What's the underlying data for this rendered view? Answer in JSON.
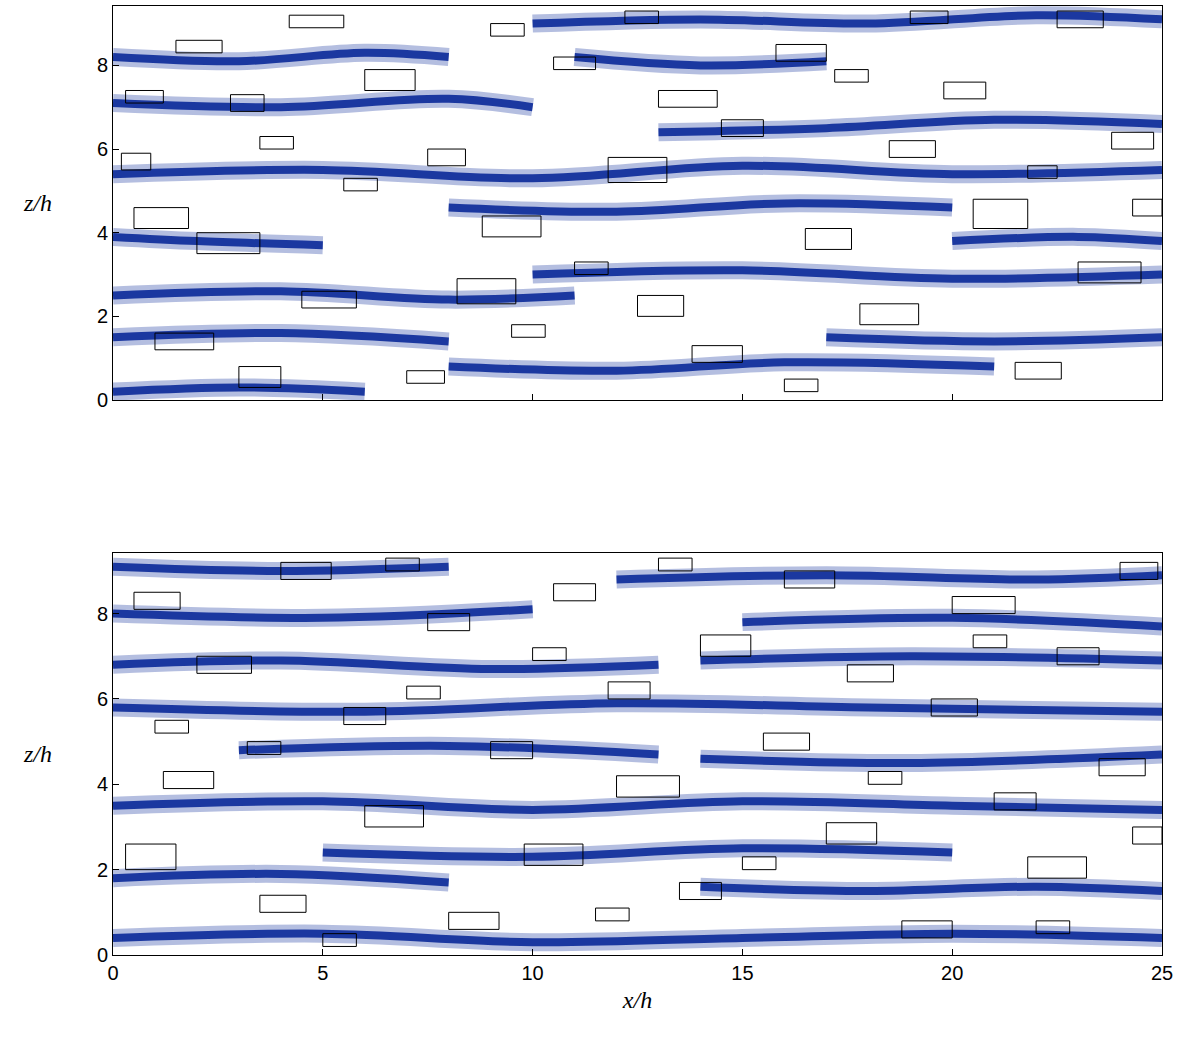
{
  "chart_data": [
    {
      "type": "scatter",
      "xlim": [
        0,
        25
      ],
      "ylim": [
        0,
        9.42
      ],
      "xticks": [
        0,
        5,
        10,
        15,
        20,
        25
      ],
      "yticks": [
        0,
        2,
        4,
        6,
        8
      ],
      "tick_labels": "y",
      "ylabel": "z/h",
      "streaks": {
        "color": "#0b2a9a",
        "lines": [
          {
            "x": [
              0,
              3,
              6,
              8
            ],
            "z": [
              8.2,
              8.1,
              8.3,
              8.2
            ]
          },
          {
            "x": [
              10,
              14,
              18,
              22,
              25
            ],
            "z": [
              9.0,
              9.1,
              9.0,
              9.2,
              9.1
            ]
          },
          {
            "x": [
              0,
              4,
              8,
              10
            ],
            "z": [
              7.1,
              7.0,
              7.2,
              7.0
            ]
          },
          {
            "x": [
              13,
              17,
              21,
              25
            ],
            "z": [
              6.4,
              6.5,
              6.7,
              6.6
            ]
          },
          {
            "x": [
              0,
              5,
              10,
              15,
              20,
              25
            ],
            "z": [
              5.4,
              5.5,
              5.3,
              5.6,
              5.4,
              5.5
            ]
          },
          {
            "x": [
              8,
              12,
              16,
              20
            ],
            "z": [
              4.6,
              4.5,
              4.7,
              4.6
            ]
          },
          {
            "x": [
              0,
              2,
              5
            ],
            "z": [
              3.9,
              3.8,
              3.7
            ]
          },
          {
            "x": [
              20,
              23,
              25
            ],
            "z": [
              3.8,
              3.9,
              3.8
            ]
          },
          {
            "x": [
              10,
              15,
              20,
              25
            ],
            "z": [
              3.0,
              3.1,
              2.9,
              3.0
            ]
          },
          {
            "x": [
              0,
              4,
              8,
              11
            ],
            "z": [
              2.5,
              2.6,
              2.4,
              2.5
            ]
          },
          {
            "x": [
              0,
              4,
              8
            ],
            "z": [
              1.5,
              1.6,
              1.4
            ]
          },
          {
            "x": [
              17,
              21,
              25
            ],
            "z": [
              1.5,
              1.4,
              1.5
            ]
          },
          {
            "x": [
              8,
              12,
              16,
              21
            ],
            "z": [
              0.8,
              0.7,
              0.9,
              0.8
            ]
          },
          {
            "x": [
              0,
              3,
              6
            ],
            "z": [
              0.2,
              0.3,
              0.2
            ]
          },
          {
            "x": [
              11,
              14,
              17
            ],
            "z": [
              8.2,
              8.0,
              8.1
            ]
          }
        ]
      },
      "boxes": {
        "color": "#000000",
        "rects": [
          [
            0.3,
            1.2,
            7.1,
            7.4
          ],
          [
            1.5,
            2.6,
            8.3,
            8.6
          ],
          [
            2.8,
            3.6,
            6.9,
            7.3
          ],
          [
            4.2,
            5.5,
            8.9,
            9.2
          ],
          [
            6.0,
            7.2,
            7.4,
            7.9
          ],
          [
            0.5,
            1.8,
            4.1,
            4.6
          ],
          [
            2.0,
            3.5,
            3.5,
            4.0
          ],
          [
            4.5,
            5.8,
            2.2,
            2.6
          ],
          [
            1.0,
            2.4,
            1.2,
            1.6
          ],
          [
            3.0,
            4.0,
            0.3,
            0.8
          ],
          [
            7.5,
            8.4,
            5.6,
            6.0
          ],
          [
            8.8,
            10.2,
            3.9,
            4.4
          ],
          [
            10.5,
            11.5,
            7.9,
            8.2
          ],
          [
            11.8,
            13.2,
            5.2,
            5.8
          ],
          [
            12.5,
            13.6,
            2.0,
            2.5
          ],
          [
            13.8,
            15.0,
            0.9,
            1.3
          ],
          [
            14.5,
            15.5,
            6.3,
            6.7
          ],
          [
            15.8,
            17.0,
            8.1,
            8.5
          ],
          [
            16.5,
            17.6,
            3.6,
            4.1
          ],
          [
            17.8,
            19.2,
            1.8,
            2.3
          ],
          [
            18.5,
            19.6,
            5.8,
            6.2
          ],
          [
            19.8,
            20.8,
            7.2,
            7.6
          ],
          [
            20.5,
            21.8,
            4.1,
            4.8
          ],
          [
            21.5,
            22.6,
            0.5,
            0.9
          ],
          [
            22.5,
            23.6,
            8.9,
            9.3
          ],
          [
            23.0,
            24.5,
            2.8,
            3.3
          ],
          [
            23.8,
            24.8,
            6.0,
            6.4
          ],
          [
            5.5,
            6.3,
            5.0,
            5.3
          ],
          [
            9.0,
            9.8,
            8.7,
            9.0
          ],
          [
            9.5,
            10.3,
            1.5,
            1.8
          ],
          [
            11.0,
            11.8,
            3.0,
            3.3
          ],
          [
            7.0,
            7.9,
            0.4,
            0.7
          ],
          [
            16.0,
            16.8,
            0.2,
            0.5
          ],
          [
            19.0,
            19.9,
            9.0,
            9.3
          ],
          [
            13.0,
            14.4,
            7.0,
            7.4
          ],
          [
            3.5,
            4.3,
            6.0,
            6.3
          ],
          [
            0.2,
            0.9,
            5.5,
            5.9
          ],
          [
            24.3,
            25.0,
            4.4,
            4.8
          ],
          [
            17.2,
            18.0,
            7.6,
            7.9
          ],
          [
            21.8,
            22.5,
            5.3,
            5.6
          ],
          [
            8.2,
            9.6,
            2.3,
            2.9
          ],
          [
            12.2,
            13.0,
            9.0,
            9.3
          ]
        ]
      }
    },
    {
      "type": "scatter",
      "xlim": [
        0,
        25
      ],
      "ylim": [
        0,
        9.42
      ],
      "xticks": [
        0,
        5,
        10,
        15,
        20,
        25
      ],
      "yticks": [
        0,
        2,
        4,
        6,
        8
      ],
      "xlabel": "x/h",
      "ylabel": "z/h",
      "streaks": {
        "color": "#0b2a9a",
        "lines": [
          {
            "x": [
              0,
              4,
              8
            ],
            "z": [
              9.1,
              9.0,
              9.1
            ]
          },
          {
            "x": [
              12,
              17,
              22,
              25
            ],
            "z": [
              8.8,
              8.9,
              8.8,
              8.9
            ]
          },
          {
            "x": [
              0,
              5,
              10
            ],
            "z": [
              8.0,
              7.9,
              8.1
            ]
          },
          {
            "x": [
              15,
              20,
              25
            ],
            "z": [
              7.8,
              7.9,
              7.7
            ]
          },
          {
            "x": [
              0,
              4,
              9,
              13
            ],
            "z": [
              6.8,
              6.9,
              6.7,
              6.8
            ]
          },
          {
            "x": [
              14,
              19,
              25
            ],
            "z": [
              6.9,
              7.0,
              6.9
            ]
          },
          {
            "x": [
              0,
              6,
              12,
              18,
              25
            ],
            "z": [
              5.8,
              5.7,
              5.9,
              5.8,
              5.7
            ]
          },
          {
            "x": [
              3,
              8,
              13
            ],
            "z": [
              4.8,
              4.9,
              4.7
            ]
          },
          {
            "x": [
              14,
              19,
              25
            ],
            "z": [
              4.6,
              4.5,
              4.7
            ]
          },
          {
            "x": [
              0,
              5,
              10,
              15,
              20,
              25
            ],
            "z": [
              3.5,
              3.6,
              3.4,
              3.6,
              3.5,
              3.4
            ]
          },
          {
            "x": [
              5,
              10,
              15,
              20
            ],
            "z": [
              2.4,
              2.3,
              2.5,
              2.4
            ]
          },
          {
            "x": [
              0,
              4,
              8
            ],
            "z": [
              1.8,
              1.9,
              1.7
            ]
          },
          {
            "x": [
              14,
              18,
              22,
              25
            ],
            "z": [
              1.6,
              1.5,
              1.6,
              1.5
            ]
          },
          {
            "x": [
              0,
              5,
              10,
              15,
              20,
              25
            ],
            "z": [
              0.4,
              0.5,
              0.3,
              0.4,
              0.5,
              0.4
            ]
          }
        ]
      },
      "boxes": {
        "color": "#000000",
        "rects": [
          [
            0.5,
            1.6,
            8.1,
            8.5
          ],
          [
            2.0,
            3.3,
            6.6,
            7.0
          ],
          [
            1.2,
            2.4,
            3.9,
            4.3
          ],
          [
            0.3,
            1.5,
            2.0,
            2.6
          ],
          [
            3.5,
            4.6,
            1.0,
            1.4
          ],
          [
            4.0,
            5.2,
            8.8,
            9.2
          ],
          [
            5.5,
            6.5,
            5.4,
            5.8
          ],
          [
            6.0,
            7.4,
            3.0,
            3.5
          ],
          [
            7.5,
            8.5,
            7.6,
            8.0
          ],
          [
            8.0,
            9.2,
            0.6,
            1.0
          ],
          [
            9.0,
            10.0,
            4.6,
            5.0
          ],
          [
            9.8,
            11.2,
            2.1,
            2.6
          ],
          [
            10.5,
            11.5,
            8.3,
            8.7
          ],
          [
            11.8,
            12.8,
            6.0,
            6.4
          ],
          [
            12.0,
            13.5,
            3.7,
            4.2
          ],
          [
            13.5,
            14.5,
            1.3,
            1.7
          ],
          [
            14.0,
            15.2,
            7.0,
            7.5
          ],
          [
            15.5,
            16.6,
            4.8,
            5.2
          ],
          [
            16.0,
            17.2,
            8.6,
            9.0
          ],
          [
            17.0,
            18.2,
            2.6,
            3.1
          ],
          [
            17.5,
            18.6,
            6.4,
            6.8
          ],
          [
            18.8,
            20.0,
            0.4,
            0.8
          ],
          [
            19.5,
            20.6,
            5.6,
            6.0
          ],
          [
            20.0,
            21.5,
            8.0,
            8.4
          ],
          [
            21.0,
            22.0,
            3.4,
            3.8
          ],
          [
            21.8,
            23.2,
            1.8,
            2.3
          ],
          [
            22.5,
            23.5,
            6.8,
            7.2
          ],
          [
            23.5,
            24.6,
            4.2,
            4.6
          ],
          [
            24.0,
            24.9,
            8.8,
            9.2
          ],
          [
            1.0,
            1.8,
            5.2,
            5.5
          ],
          [
            3.2,
            4.0,
            4.7,
            5.0
          ],
          [
            5.0,
            5.8,
            0.2,
            0.5
          ],
          [
            7.0,
            7.8,
            6.0,
            6.3
          ],
          [
            10.0,
            10.8,
            6.9,
            7.2
          ],
          [
            13.0,
            13.8,
            9.0,
            9.3
          ],
          [
            15.0,
            15.8,
            2.0,
            2.3
          ],
          [
            18.0,
            18.8,
            4.0,
            4.3
          ],
          [
            20.5,
            21.3,
            7.2,
            7.5
          ],
          [
            22.0,
            22.8,
            0.5,
            0.8
          ],
          [
            24.3,
            25.0,
            2.6,
            3.0
          ],
          [
            6.5,
            7.3,
            9.0,
            9.3
          ],
          [
            11.5,
            12.3,
            0.8,
            1.1
          ]
        ]
      }
    }
  ]
}
